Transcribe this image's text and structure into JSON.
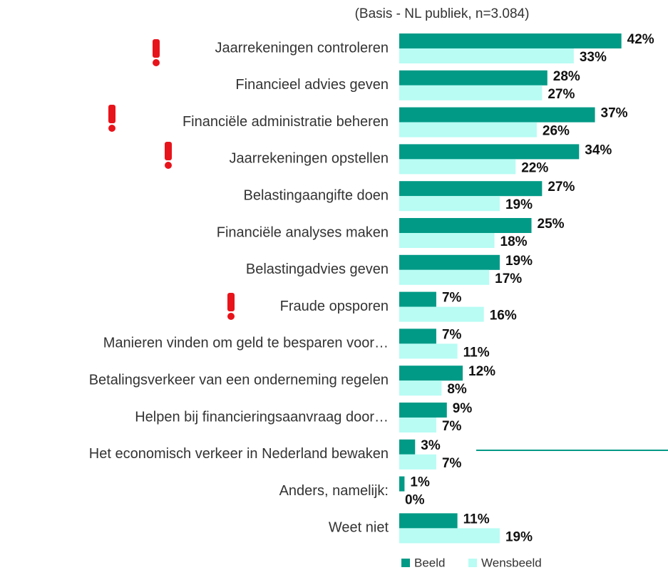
{
  "chart_data": {
    "type": "bar",
    "orientation": "horizontal",
    "subtitle": "(Basis - NL publiek, n=3.084)",
    "categories": [
      "Jaarrekeningen controleren",
      "Financieel advies geven",
      "Financiële administratie beheren",
      "Jaarrekeningen opstellen",
      "Belastingaangifte doen",
      "Financiële analyses maken",
      "Belastingadvies geven",
      "Fraude opsporen",
      "Manieren vinden om geld te besparen voor…",
      "Betalingsverkeer van een onderneming regelen",
      "Helpen bij financieringsaanvraag door…",
      "Het economisch verkeer in Nederland bewaken",
      "Anders, namelijk:",
      "Weet niet"
    ],
    "series": [
      {
        "name": "Beeld",
        "color": "#009a86",
        "values": [
          42,
          28,
          37,
          34,
          27,
          25,
          19,
          7,
          7,
          12,
          9,
          3,
          1,
          11
        ],
        "value_labels": [
          "42%",
          "28%",
          "37%",
          "34%",
          "27%",
          "25%",
          "19%",
          "7%",
          "7%",
          "12%",
          "9%",
          "3%",
          "1%",
          "11%"
        ]
      },
      {
        "name": "Wensbeeld",
        "color": "#b8fcf4",
        "values": [
          33,
          27,
          26,
          22,
          19,
          18,
          17,
          16,
          11,
          8,
          7,
          7,
          0,
          19
        ],
        "value_labels": [
          "33%",
          "27%",
          "26%",
          "22%",
          "19%",
          "18%",
          "17%",
          "16%",
          "11%",
          "8%",
          "7%",
          "7%",
          "0%",
          "19%"
        ]
      }
    ]
  }
}
